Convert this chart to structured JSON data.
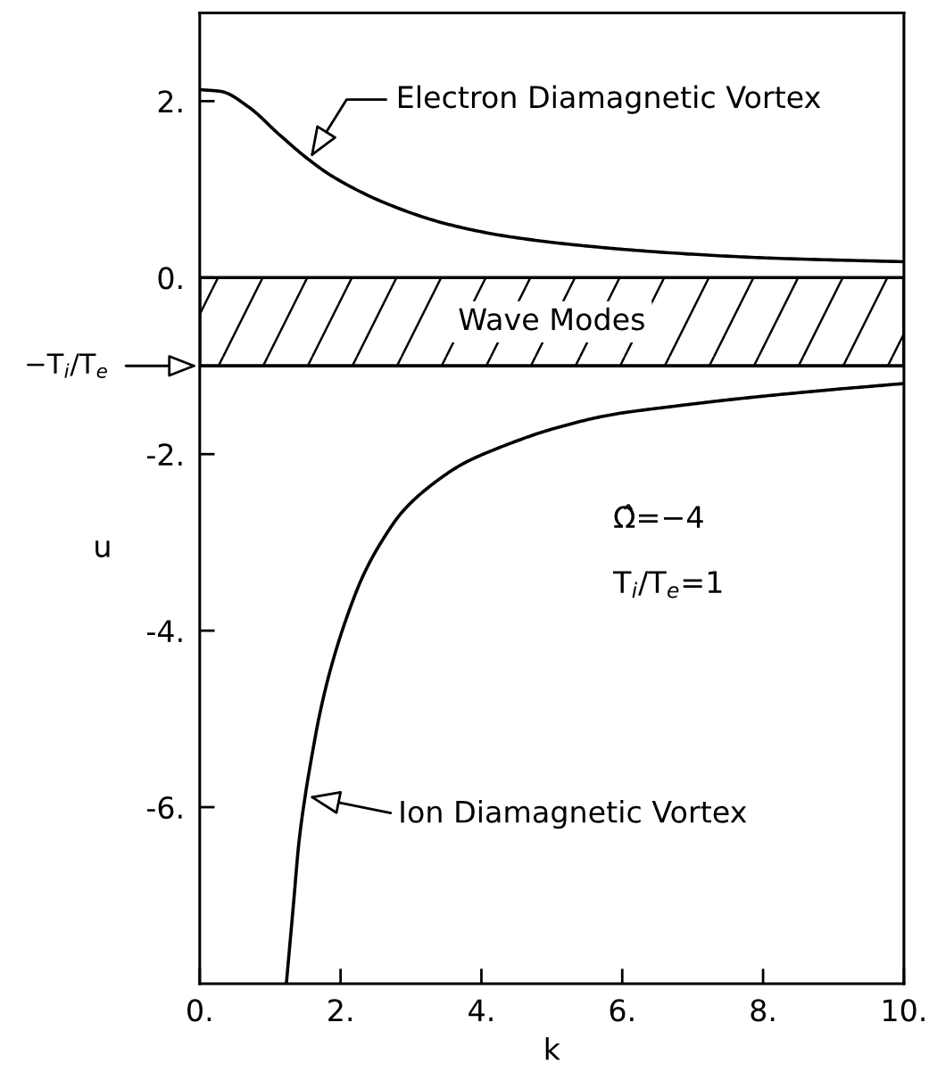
{
  "chart_data": {
    "type": "line",
    "xlabel": "k",
    "ylabel": "u",
    "xlim": [
      0,
      10
    ],
    "ylim": [
      -8,
      3
    ],
    "xticks": [
      {
        "value": 0,
        "label": "0."
      },
      {
        "value": 2,
        "label": "2."
      },
      {
        "value": 4,
        "label": "4."
      },
      {
        "value": 6,
        "label": "6."
      },
      {
        "value": 8,
        "label": "8."
      },
      {
        "value": 10,
        "label": "10."
      }
    ],
    "yticks": [
      {
        "value": -6,
        "label": "-6."
      },
      {
        "value": -4,
        "label": "-4."
      },
      {
        "value": -2,
        "label": "-2."
      },
      {
        "value": 0,
        "label": "0."
      },
      {
        "value": 2,
        "label": "2."
      }
    ],
    "marker": "none",
    "line_style": "solid",
    "series": [
      {
        "color": "#000000",
        "x": [
          0,
          0.3,
          0.7,
          1.13,
          1.56,
          1.9,
          2.65,
          3.5,
          4.35,
          5.6,
          6.9,
          8.15,
          10
        ],
        "values": [
          2.13,
          2.11,
          1.93,
          1.62,
          1.33,
          1.14,
          0.84,
          0.61,
          0.47,
          0.35,
          0.27,
          0.22,
          0.18
        ]
      },
      {
        "color": "#000000",
        "x": [
          1.23,
          1.33,
          1.41,
          1.5,
          1.59,
          1.7,
          1.85,
          2.07,
          2.33,
          2.63,
          2.87,
          3.29,
          3.76,
          4.18,
          5.03,
          5.87,
          6.71,
          7.56,
          8.83,
          10
        ],
        "values": [
          -8.0,
          -7.11,
          -6.39,
          -5.86,
          -5.43,
          -4.96,
          -4.46,
          -3.89,
          -3.36,
          -2.93,
          -2.66,
          -2.35,
          -2.1,
          -1.95,
          -1.71,
          -1.55,
          -1.46,
          -1.38,
          -1.28,
          -1.2
        ]
      }
    ],
    "bands": [
      {
        "axis": "y",
        "from": -1,
        "to": 0,
        "label": "Wave Modes",
        "color": "#000000"
      }
    ],
    "ref_lines": [
      {
        "axis": "y",
        "value": -1,
        "label": "−T$_{i}$/T$_{e}$",
        "color": "#000000",
        "line_style": "solid"
      }
    ],
    "annotations": [
      {
        "text": "Electron Diamagnetic Vortex",
        "x": 1.57,
        "y": 1.36
      },
      {
        "text": "Ion Diamagnetic Vortex",
        "x": 1.55,
        "y": -5.88
      },
      "Ω̂=−4",
      "T$_{i}$/T$_{e}$=1"
    ]
  }
}
